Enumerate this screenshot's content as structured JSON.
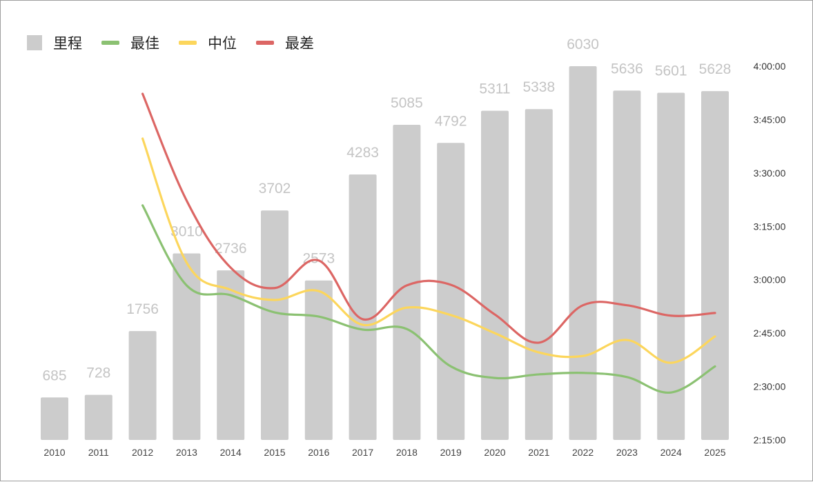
{
  "chart_data": {
    "type": "bar",
    "title": "",
    "xlabel": "",
    "ylabel": "",
    "categories": [
      "2010",
      "2011",
      "2012",
      "2013",
      "2014",
      "2015",
      "2016",
      "2017",
      "2018",
      "2019",
      "2020",
      "2021",
      "2022",
      "2023",
      "2024",
      "2025"
    ],
    "bar_series": {
      "name": "里程",
      "values": [
        685,
        728,
        1756,
        3010,
        2736,
        3702,
        2573,
        4283,
        5085,
        4792,
        5311,
        5338,
        6030,
        5636,
        5601,
        5628
      ],
      "color": "#cccccc"
    },
    "ylim_left": [
      0,
      6030
    ],
    "line_series": [
      {
        "name": "最佳",
        "color": "#8bc172",
        "values": [
          null,
          null,
          "3:20:54",
          "2:58:25",
          "2:55:40",
          "2:50:50",
          "2:49:40",
          "2:46:00",
          "2:46:10",
          "2:35:40",
          "2:32:25",
          "2:33:25",
          "2:33:50",
          "2:32:40",
          "2:28:20",
          "2:35:40"
        ]
      },
      {
        "name": "中位",
        "color": "#fcd65c",
        "values": [
          null,
          null,
          "3:39:40",
          "3:04:50",
          "2:57:10",
          "2:54:20",
          "2:56:50",
          "2:47:20",
          "2:52:10",
          "2:50:05",
          "2:45:00",
          "2:39:35",
          "2:38:35",
          "2:43:05",
          "2:36:40",
          "2:44:05"
        ]
      },
      {
        "name": "最差",
        "color": "#dc6664",
        "values": [
          null,
          null,
          "3:52:15",
          "3:22:15",
          "3:03:25",
          "2:57:40",
          "3:05:25",
          "2:48:55",
          "2:58:25",
          "2:58:35",
          "2:50:15",
          "2:42:20",
          "2:52:50",
          "2:52:50",
          "2:49:55",
          "2:50:40"
        ]
      }
    ],
    "right_axis": {
      "ticks": [
        "2:15:00",
        "2:30:00",
        "2:45:00",
        "3:00:00",
        "3:15:00",
        "3:30:00",
        "3:45:00",
        "4:00:00"
      ],
      "range": [
        "2:15:00",
        "4:00:00"
      ]
    },
    "legend_position": "top-left",
    "grid": false
  }
}
